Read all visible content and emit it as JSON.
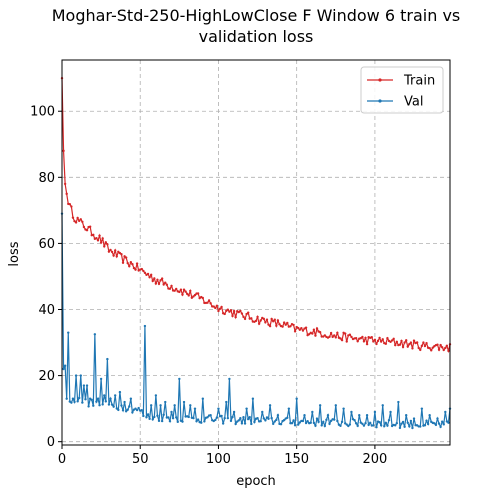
{
  "chart_data": {
    "type": "line",
    "title": [
      "Moghar-Std-250-HighLowClose F Window 6 train vs",
      "validation loss"
    ],
    "xlabel": "epoch",
    "ylabel": "loss",
    "xlim": [
      0,
      248
    ],
    "ylim": [
      -1,
      115.5
    ],
    "xticks": [
      0,
      50,
      100,
      150,
      200
    ],
    "yticks": [
      0,
      20,
      40,
      60,
      80,
      100
    ],
    "grid": true,
    "legend_position": "upper-right",
    "series": [
      {
        "name": "Train",
        "color": "#d62728",
        "anchors": [
          [
            0,
            110
          ],
          [
            1,
            88
          ],
          [
            2,
            78
          ],
          [
            3,
            75
          ],
          [
            5,
            71
          ],
          [
            8,
            68
          ],
          [
            10,
            67
          ],
          [
            15,
            65
          ],
          [
            20,
            63
          ],
          [
            25,
            61
          ],
          [
            30,
            58
          ],
          [
            40,
            55
          ],
          [
            50,
            52
          ],
          [
            60,
            49
          ],
          [
            75,
            46
          ],
          [
            90,
            43
          ],
          [
            100,
            40.5
          ],
          [
            110,
            39
          ],
          [
            125,
            37
          ],
          [
            140,
            35.5
          ],
          [
            150,
            34
          ],
          [
            165,
            33
          ],
          [
            175,
            32
          ],
          [
            190,
            31
          ],
          [
            200,
            30.5
          ],
          [
            215,
            30
          ],
          [
            230,
            29
          ],
          [
            248,
            28.5
          ]
        ],
        "noise": 1.3
      },
      {
        "name": "Val",
        "color": "#1f77b4",
        "anchors": [
          [
            0,
            69
          ],
          [
            1,
            25
          ],
          [
            2,
            23
          ],
          [
            3,
            13
          ],
          [
            10,
            12.5
          ],
          [
            20,
            11.5
          ],
          [
            30,
            11
          ],
          [
            40,
            10.5
          ],
          [
            50,
            9.5
          ],
          [
            52,
            8
          ],
          [
            55,
            7.5
          ],
          [
            70,
            7.2
          ],
          [
            90,
            6.8
          ],
          [
            110,
            6.5
          ],
          [
            130,
            6.3
          ],
          [
            150,
            6.0
          ],
          [
            170,
            5.8
          ],
          [
            190,
            5.6
          ],
          [
            210,
            5.4
          ],
          [
            230,
            5.2
          ],
          [
            248,
            5.0
          ]
        ],
        "noise": 1.2,
        "spikes": [
          [
            1,
            22
          ],
          [
            4,
            33
          ],
          [
            7,
            13
          ],
          [
            9,
            20
          ],
          [
            12,
            20
          ],
          [
            14,
            17
          ],
          [
            16,
            17
          ],
          [
            18,
            13
          ],
          [
            21,
            32.5
          ],
          [
            23,
            13
          ],
          [
            25,
            19
          ],
          [
            27,
            14
          ],
          [
            29,
            25
          ],
          [
            31,
            13
          ],
          [
            34,
            14
          ],
          [
            37,
            15
          ],
          [
            40,
            12
          ],
          [
            44,
            13
          ],
          [
            47,
            10
          ],
          [
            53,
            35
          ],
          [
            57,
            11
          ],
          [
            60,
            14
          ],
          [
            63,
            11
          ],
          [
            66,
            12
          ],
          [
            70,
            9
          ],
          [
            72,
            11
          ],
          [
            75,
            19
          ],
          [
            78,
            12
          ],
          [
            82,
            11
          ],
          [
            85,
            10
          ],
          [
            90,
            13
          ],
          [
            95,
            8
          ],
          [
            100,
            10
          ],
          [
            105,
            12
          ],
          [
            107,
            19
          ],
          [
            110,
            9
          ],
          [
            118,
            10
          ],
          [
            122,
            13
          ],
          [
            128,
            9
          ],
          [
            133,
            11
          ],
          [
            138,
            8
          ],
          [
            145,
            10
          ],
          [
            150,
            13
          ],
          [
            155,
            8
          ],
          [
            160,
            9
          ],
          [
            165,
            11
          ],
          [
            170,
            8
          ],
          [
            175,
            11
          ],
          [
            180,
            10
          ],
          [
            185,
            9
          ],
          [
            190,
            8
          ],
          [
            195,
            8
          ],
          [
            200,
            9
          ],
          [
            205,
            11
          ],
          [
            210,
            9
          ],
          [
            215,
            12
          ],
          [
            220,
            8
          ],
          [
            225,
            7
          ],
          [
            230,
            10
          ],
          [
            235,
            8
          ],
          [
            240,
            7
          ],
          [
            245,
            9
          ],
          [
            248,
            10
          ]
        ]
      }
    ]
  }
}
